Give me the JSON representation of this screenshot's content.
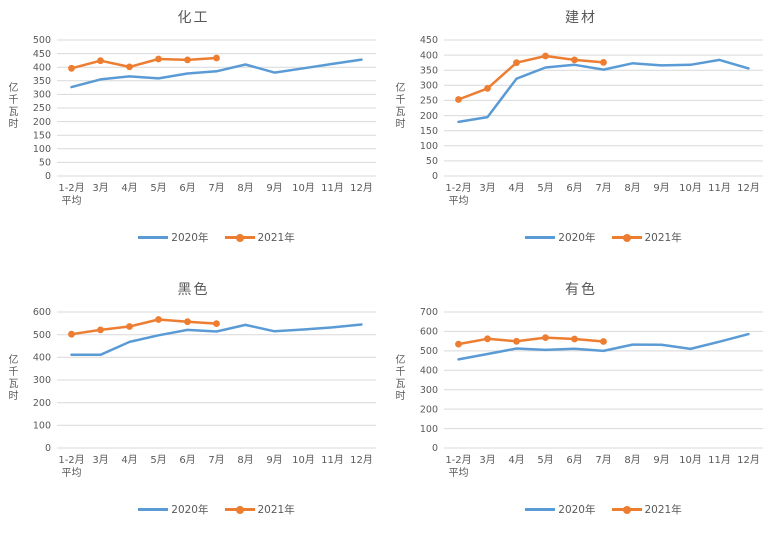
{
  "style": {
    "series_2020_color": "#5B9BD5",
    "series_2021_color": "#ED7D31",
    "gridline_color": "#D9D9D9",
    "text_color": "#595959",
    "background": "#FFFFFF"
  },
  "chart_data": [
    {
      "type": "line",
      "title": "化工",
      "ylabel": "亿千瓦时",
      "ylim": [
        0,
        500
      ],
      "ytick_step": 50,
      "grid": true,
      "legend_position": "bottom",
      "categories": [
        "1-2月\n平均",
        "3月",
        "4月",
        "5月",
        "6月",
        "7月",
        "8月",
        "9月",
        "10月",
        "11月",
        "12月"
      ],
      "series": [
        {
          "name": "2020年",
          "color": "#5B9BD5",
          "marker": false,
          "values": [
            327,
            355,
            366,
            359,
            377,
            385,
            410,
            380,
            396,
            412,
            428
          ]
        },
        {
          "name": "2021年",
          "color": "#ED7D31",
          "marker": true,
          "values": [
            396,
            424,
            401,
            430,
            427,
            434
          ]
        }
      ]
    },
    {
      "type": "line",
      "title": "建材",
      "ylabel": "亿千瓦时",
      "ylim": [
        0,
        450
      ],
      "ytick_step": 50,
      "grid": true,
      "legend_position": "bottom",
      "categories": [
        "1-2月\n平均",
        "3月",
        "4月",
        "5月",
        "6月",
        "7月",
        "8月",
        "9月",
        "10月",
        "11月",
        "12月"
      ],
      "series": [
        {
          "name": "2020年",
          "color": "#5B9BD5",
          "marker": false,
          "values": [
            179,
            195,
            322,
            359,
            368,
            352,
            373,
            366,
            368,
            384,
            356
          ]
        },
        {
          "name": "2021年",
          "color": "#ED7D31",
          "marker": true,
          "values": [
            253,
            290,
            375,
            397,
            384,
            376
          ]
        }
      ]
    },
    {
      "type": "line",
      "title": "黑色",
      "ylabel": "亿千瓦时",
      "ylim": [
        0,
        600
      ],
      "ytick_step": 100,
      "grid": true,
      "legend_position": "bottom",
      "categories": [
        "1-2月\n平均",
        "3月",
        "4月",
        "5月",
        "6月",
        "7月",
        "8月",
        "9月",
        "10月",
        "11月",
        "12月"
      ],
      "series": [
        {
          "name": "2020年",
          "color": "#5B9BD5",
          "marker": false,
          "values": [
            411,
            411,
            468,
            497,
            521,
            514,
            543,
            515,
            523,
            532,
            545
          ]
        },
        {
          "name": "2021年",
          "color": "#ED7D31",
          "marker": true,
          "values": [
            502,
            521,
            536,
            567,
            557,
            549
          ]
        }
      ]
    },
    {
      "type": "line",
      "title": "有色",
      "ylabel": "亿千瓦时",
      "ylim": [
        0,
        700
      ],
      "ytick_step": 100,
      "grid": true,
      "legend_position": "bottom",
      "categories": [
        "1-2月\n平均",
        "3月",
        "4月",
        "5月",
        "6月",
        "7月",
        "8月",
        "9月",
        "10月",
        "11月",
        "12月"
      ],
      "series": [
        {
          "name": "2020年",
          "color": "#5B9BD5",
          "marker": false,
          "values": [
            456,
            484,
            512,
            505,
            511,
            500,
            532,
            531,
            510,
            547,
            586
          ]
        },
        {
          "name": "2021年",
          "color": "#ED7D31",
          "marker": true,
          "values": [
            535,
            562,
            549,
            568,
            561,
            548
          ]
        }
      ]
    }
  ]
}
